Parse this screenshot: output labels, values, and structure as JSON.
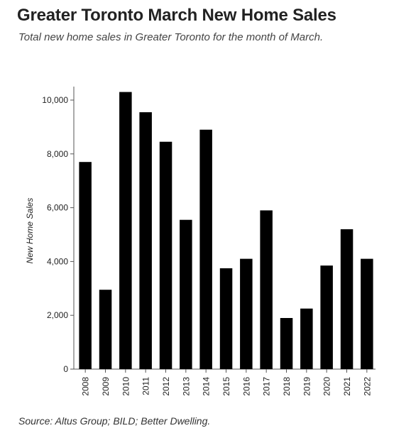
{
  "header": {
    "title": "Greater Toronto March New Home Sales",
    "subtitle": "Total new home sales in Greater Toronto for the month of March."
  },
  "footer": {
    "source": "Source: Altus Group; BILD; Better Dwelling."
  },
  "chart_data": {
    "type": "bar",
    "title": "",
    "xlabel": "",
    "ylabel": "New Home Sales",
    "ylim": [
      0,
      10500
    ],
    "yticks": [
      0,
      2000,
      4000,
      6000,
      8000,
      10000
    ],
    "ytick_labels": [
      "0",
      "2,000",
      "4,000",
      "6,000",
      "8,000",
      "10,000"
    ],
    "grid": false,
    "categories": [
      "2008",
      "2009",
      "2010",
      "2011",
      "2012",
      "2013",
      "2014",
      "2015",
      "2016",
      "2017",
      "2018",
      "2019",
      "2020",
      "2021",
      "2022"
    ],
    "values": [
      7700,
      2950,
      10300,
      9550,
      8450,
      5550,
      8900,
      3750,
      4100,
      5900,
      1900,
      2250,
      3850,
      5200,
      4100
    ],
    "bar_color": "#000000"
  }
}
